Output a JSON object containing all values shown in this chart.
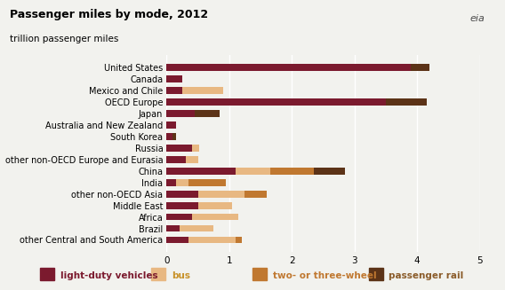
{
  "title": "Passenger miles by mode, 2012",
  "subtitle": "trillion passenger miles",
  "categories": [
    "United States",
    "Canada",
    "Mexico and Chile",
    "OECD Europe",
    "Japan",
    "Australia and New Zealand",
    "South Korea",
    "Russia",
    "other non-OECD Europe and Eurasia",
    "China",
    "India",
    "other non-OECD Asia",
    "Middle East",
    "Africa",
    "Brazil",
    "other Central and South America"
  ],
  "light_duty": [
    3.9,
    0.25,
    0.25,
    3.5,
    0.45,
    0.15,
    0.1,
    0.4,
    0.3,
    1.1,
    0.15,
    0.5,
    0.5,
    0.4,
    0.2,
    0.35
  ],
  "bus": [
    0.0,
    0.0,
    0.65,
    0.0,
    0.0,
    0.0,
    0.0,
    0.12,
    0.2,
    0.55,
    0.2,
    0.75,
    0.55,
    0.75,
    0.55,
    0.75
  ],
  "two_three": [
    0.0,
    0.0,
    0.0,
    0.0,
    0.0,
    0.0,
    0.0,
    0.0,
    0.0,
    0.7,
    0.6,
    0.35,
    0.0,
    0.0,
    0.0,
    0.1
  ],
  "rail": [
    0.3,
    0.0,
    0.0,
    0.65,
    0.4,
    0.0,
    0.05,
    0.0,
    0.0,
    0.5,
    0.0,
    0.0,
    0.0,
    0.0,
    0.0,
    0.0
  ],
  "color_ldv": "#7b1a2e",
  "color_bus": "#e8b882",
  "color_two": "#c07830",
  "color_rail": "#5c3317",
  "legend_labels": [
    "light-duty vehicles",
    "bus",
    "two- or three-wheel",
    "passenger rail"
  ],
  "legend_colors": [
    "#7b1a2e",
    "#e8b882",
    "#c07830",
    "#5c3317"
  ],
  "legend_text_colors": [
    "#7b1a2e",
    "#c8922a",
    "#c07830",
    "#8b5c2a"
  ],
  "xlim": [
    0,
    5
  ],
  "xticks": [
    0,
    1,
    2,
    3,
    4,
    5
  ],
  "bg": "#f2f2ee"
}
